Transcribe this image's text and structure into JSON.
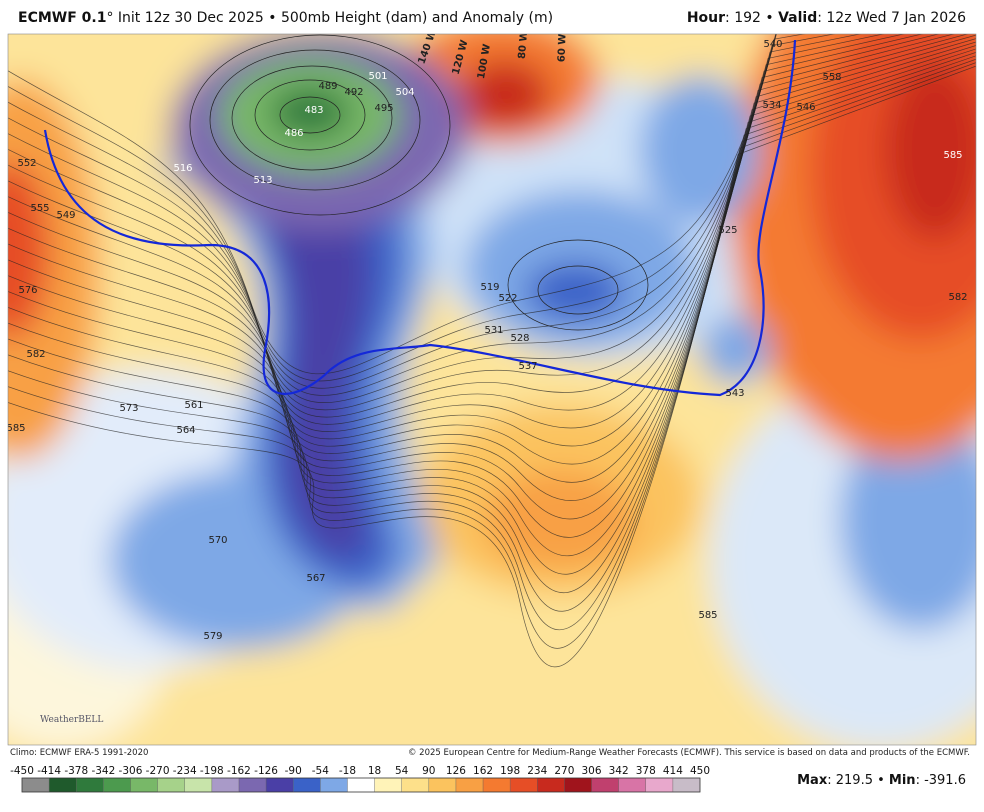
{
  "header": {
    "model": "ECMWF 0.1",
    "description": "° Init 12z 30 Dec 2025 • 500mb Height (dam) and Anomaly (m)",
    "hour_label": "Hour",
    "hour_text": ": 192 • ",
    "valid_label": "Valid",
    "valid_text": ": 12z Wed 7 Jan 2026"
  },
  "map": {
    "contour_labels": [
      483,
      486,
      489,
      492,
      495,
      501,
      504,
      513,
      516,
      519,
      522,
      528,
      531,
      537,
      534,
      540,
      546,
      549,
      552,
      555,
      558,
      561,
      564,
      567,
      570,
      573,
      576,
      579,
      582,
      585,
      585,
      582,
      585,
      543,
      525
    ],
    "longitude_labels": [
      "140 W",
      "120 W",
      "100 W",
      "80 W",
      "60 W"
    ]
  },
  "logo": "WeatherBELL",
  "footer": {
    "climo": "Climo: ECMWF ERA-5 1991-2020",
    "copyright": "© 2025 European Centre for Medium-Range Weather Forecasts (ECMWF). This service is based on data and products of the ECMWF."
  },
  "colorbar": {
    "ticks": [
      -450,
      -414,
      -378,
      -342,
      -306,
      -270,
      -234,
      -198,
      -162,
      -126,
      -90,
      -54,
      -18,
      18,
      54,
      90,
      126,
      162,
      198,
      234,
      270,
      306,
      342,
      378,
      414,
      450
    ],
    "colors": [
      "#8c8c8c",
      "#1f5a2c",
      "#2f7a3c",
      "#4c9a4e",
      "#78b868",
      "#a6d28a",
      "#c8e4aa",
      "#a99ac8",
      "#7b68b0",
      "#4a3fa6",
      "#3a62c8",
      "#7ea8e6",
      "#ffffff",
      "#fff3b8",
      "#fde08a",
      "#fbc35e",
      "#f8a044",
      "#f47a30",
      "#e64e26",
      "#c82a1e",
      "#a0141c",
      "#c0406e",
      "#d874a6",
      "#e8a8cc",
      "#c8bcc8"
    ]
  },
  "stats": {
    "max_label": "Max",
    "colon": ": ",
    "max": 219.5,
    "separator": " • ",
    "min_label": "Min",
    "min": -391.6
  }
}
